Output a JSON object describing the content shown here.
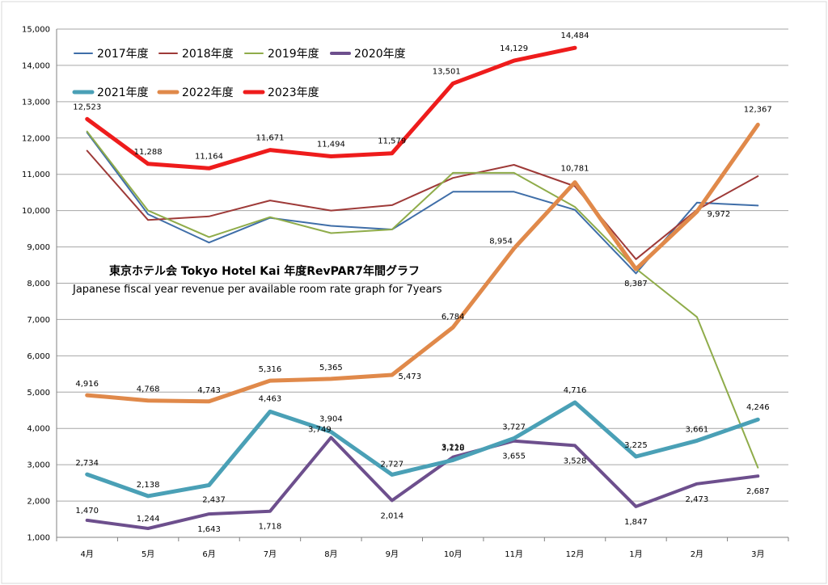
{
  "chart_data": {
    "type": "line",
    "title": "東京ホテル会 Tokyo Hotel Kai  年度RevPAR7年間グラフ",
    "subtitle": "Japanese fiscal year revenue per available room rate graph for 7years",
    "xlabel": "",
    "ylabel": "",
    "ylim": [
      1000,
      15000
    ],
    "yticks": [
      1000,
      2000,
      3000,
      4000,
      5000,
      6000,
      7000,
      8000,
      9000,
      10000,
      11000,
      12000,
      13000,
      14000,
      15000
    ],
    "ytick_labels": [
      "1,000",
      "2,000",
      "3,000",
      "4,000",
      "5,000",
      "6,000",
      "7,000",
      "8,000",
      "9,000",
      "10,000",
      "11,000",
      "12,000",
      "13,000",
      "14,000",
      "15,000"
    ],
    "grid": true,
    "legend": "top-left",
    "categories": [
      "4月",
      "5月",
      "6月",
      "7月",
      "8月",
      "9月",
      "10月",
      "11月",
      "12月",
      "1月",
      "2月",
      "3月"
    ],
    "series": [
      {
        "name": "2017年度",
        "color": "#3f6ea8",
        "width": 2,
        "labeled": false,
        "values": [
          12150,
          9900,
          9120,
          9800,
          9580,
          9480,
          10520,
          10520,
          10020,
          8270,
          10220,
          10140
        ]
      },
      {
        "name": "2018年度",
        "color": "#9e3a38",
        "width": 2,
        "labeled": false,
        "values": [
          11650,
          9740,
          9840,
          10280,
          10000,
          10150,
          10900,
          11260,
          10670,
          8660,
          10020,
          10950
        ]
      },
      {
        "name": "2019年度",
        "color": "#8fac4a",
        "width": 2,
        "labeled": false,
        "values": [
          12180,
          10000,
          9270,
          9820,
          9380,
          9480,
          11040,
          11040,
          10100,
          8400,
          7070,
          2920
        ]
      },
      {
        "name": "2020年度",
        "color": "#6d4f8d",
        "width": 4,
        "labeled": true,
        "values": [
          1470,
          1244,
          1643,
          1718,
          3749,
          2014,
          3210,
          3655,
          3528,
          1847,
          2473,
          2687
        ],
        "labels": [
          "1,470",
          "1,244",
          "1,643",
          "1,718",
          "3,749",
          "2,014",
          "3,210",
          "3,655",
          "3,528",
          "1,847",
          "2,473",
          "2,687"
        ]
      },
      {
        "name": "2021年度",
        "color": "#4aa0b6",
        "width": 5,
        "labeled": true,
        "values": [
          2734,
          2138,
          2437,
          4463,
          3904,
          2727,
          3128,
          3727,
          4716,
          3225,
          3661,
          4246
        ],
        "labels": [
          "2,734",
          "2,138",
          "2,437",
          "4,463",
          "3,904",
          "2,727",
          "3,128",
          "3,727",
          "4,716",
          "3,225",
          "3,661",
          "4,246"
        ]
      },
      {
        "name": "2022年度",
        "color": "#e0894a",
        "width": 5,
        "labeled": true,
        "values": [
          4916,
          4768,
          4743,
          5316,
          5365,
          5473,
          6784,
          8954,
          10781,
          8387,
          9972,
          12367
        ],
        "labels": [
          "4,916",
          "4,768",
          "4,743",
          "5,316",
          "5,365",
          "5,473",
          "6,784",
          "8,954",
          "10,781",
          "8,387",
          "9,972",
          "12,367"
        ]
      },
      {
        "name": "2023年度",
        "color": "#ee1c1c",
        "width": 5,
        "labeled": true,
        "values": [
          12523,
          11288,
          11164,
          11671,
          11494,
          11579,
          13501,
          14129,
          14484,
          null,
          null,
          null
        ],
        "labels": [
          "12,523",
          "11,288",
          "11,164",
          "11,671",
          "11,494",
          "11,579",
          "13,501",
          "14,129",
          "14,484",
          null,
          null,
          null
        ]
      }
    ]
  }
}
